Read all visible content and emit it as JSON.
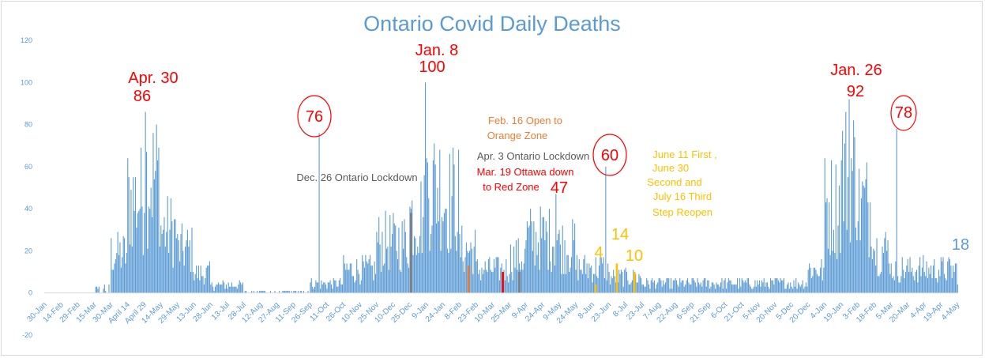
{
  "chart_data": {
    "type": "bar",
    "title": "Ontario Covid Daily Deaths",
    "xlabel": "",
    "ylabel": "",
    "ylim": [
      -20,
      120
    ],
    "yticks": [
      -20,
      0,
      20,
      40,
      60,
      80,
      100,
      120
    ],
    "x_start_date": "2020-01-30",
    "x_end_date": "2022-05-04",
    "grid": false,
    "legend": "none",
    "bar_color": "#5b9bd5",
    "x_tick_labels": [
      {
        "date": "2020-01-30",
        "label": "30-Jan"
      },
      {
        "date": "2020-02-14",
        "label": "14-Feb"
      },
      {
        "date": "2020-02-29",
        "label": "29-Feb"
      },
      {
        "date": "2020-03-15",
        "label": "15-Mar"
      },
      {
        "date": "2020-03-30",
        "label": "30-Mar"
      },
      {
        "date": "2020-04-14",
        "label": "April 14"
      },
      {
        "date": "2020-04-29",
        "label": "April 29"
      },
      {
        "date": "2020-05-14",
        "label": "14-May"
      },
      {
        "date": "2020-05-29",
        "label": "29-May"
      },
      {
        "date": "2020-06-13",
        "label": "13-Jun"
      },
      {
        "date": "2020-06-28",
        "label": "28-Jun"
      },
      {
        "date": "2020-07-13",
        "label": "13-Jul"
      },
      {
        "date": "2020-07-28",
        "label": "28-Jul"
      },
      {
        "date": "2020-08-12",
        "label": "12-Aug"
      },
      {
        "date": "2020-08-27",
        "label": "27-Aug"
      },
      {
        "date": "2020-09-11",
        "label": "11-Sep"
      },
      {
        "date": "2020-09-26",
        "label": "26-Sep"
      },
      {
        "date": "2020-10-11",
        "label": "11-Oct"
      },
      {
        "date": "2020-10-26",
        "label": "26-Oct"
      },
      {
        "date": "2020-11-10",
        "label": "10-Nov"
      },
      {
        "date": "2020-11-25",
        "label": "25-Nov"
      },
      {
        "date": "2020-12-10",
        "label": "10-Dec"
      },
      {
        "date": "2020-12-25",
        "label": "25-Dec"
      },
      {
        "date": "2021-01-09",
        "label": "9-Jan"
      },
      {
        "date": "2021-01-24",
        "label": "24-Jan"
      },
      {
        "date": "2021-02-08",
        "label": "8-Feb"
      },
      {
        "date": "2021-02-23",
        "label": "23-Feb"
      },
      {
        "date": "2021-03-10",
        "label": "10-Mar"
      },
      {
        "date": "2021-03-25",
        "label": "25-Mar"
      },
      {
        "date": "2021-04-09",
        "label": "9-Apr"
      },
      {
        "date": "2021-04-24",
        "label": "24-Apr"
      },
      {
        "date": "2021-05-09",
        "label": "9-May"
      },
      {
        "date": "2021-05-24",
        "label": "24-May"
      },
      {
        "date": "2021-06-08",
        "label": "8-Jun"
      },
      {
        "date": "2021-06-23",
        "label": "23-Jun"
      },
      {
        "date": "2021-07-08",
        "label": "8-Jul"
      },
      {
        "date": "2021-07-23",
        "label": "23-Jul"
      },
      {
        "date": "2021-08-07",
        "label": "7-Aug"
      },
      {
        "date": "2021-08-22",
        "label": "22-Aug"
      },
      {
        "date": "2021-09-06",
        "label": "6-Sep"
      },
      {
        "date": "2021-09-21",
        "label": "21-Sep"
      },
      {
        "date": "2021-10-06",
        "label": "6-Oct"
      },
      {
        "date": "2021-10-21",
        "label": "21-Oct"
      },
      {
        "date": "2021-11-05",
        "label": "5-Nov"
      },
      {
        "date": "2021-11-20",
        "label": "20-Nov"
      },
      {
        "date": "2021-12-05",
        "label": "5-Dec"
      },
      {
        "date": "2021-12-20",
        "label": "20-Dec"
      },
      {
        "date": "2022-01-04",
        "label": "4-Jan"
      },
      {
        "date": "2022-01-19",
        "label": "19-Jan"
      },
      {
        "date": "2022-02-03",
        "label": "3-Feb"
      },
      {
        "date": "2022-02-18",
        "label": "18-Feb"
      },
      {
        "date": "2022-03-05",
        "label": "5-Mar"
      },
      {
        "date": "2022-03-20",
        "label": "20-Mar"
      },
      {
        "date": "2022-04-04",
        "label": "4-Apr"
      },
      {
        "date": "2022-04-19",
        "label": "19-Apr"
      },
      {
        "date": "2022-05-04",
        "label": "4-May"
      }
    ],
    "series": [
      {
        "values_by_period": [
          {
            "from": "2020-01-30",
            "to": "2020-03-14",
            "approx": 0
          },
          {
            "from": "2020-03-15",
            "to": "2020-03-29",
            "approx": 3
          },
          {
            "from": "2020-03-30",
            "to": "2020-04-13",
            "approx": 20
          },
          {
            "from": "2020-04-14",
            "to": "2020-04-28",
            "approx": 48
          },
          {
            "from": "2020-04-29",
            "to": "2020-05-13",
            "approx": 60
          },
          {
            "from": "2020-05-14",
            "to": "2020-05-28",
            "approx": 32
          },
          {
            "from": "2020-05-29",
            "to": "2020-06-12",
            "approx": 22
          },
          {
            "from": "2020-06-13",
            "to": "2020-06-27",
            "approx": 10
          },
          {
            "from": "2020-06-28",
            "to": "2020-07-27",
            "approx": 4
          },
          {
            "from": "2020-07-28",
            "to": "2020-09-25",
            "approx": 1
          },
          {
            "from": "2020-09-26",
            "to": "2020-10-25",
            "approx": 5
          },
          {
            "from": "2020-10-26",
            "to": "2020-11-24",
            "approx": 12
          },
          {
            "from": "2020-11-25",
            "to": "2020-12-24",
            "approx": 26
          },
          {
            "from": "2020-12-25",
            "to": "2021-01-08",
            "approx": 40
          },
          {
            "from": "2021-01-09",
            "to": "2021-01-23",
            "approx": 55
          },
          {
            "from": "2021-01-24",
            "to": "2021-02-07",
            "approx": 48
          },
          {
            "from": "2021-02-08",
            "to": "2021-02-22",
            "approx": 22
          },
          {
            "from": "2021-02-23",
            "to": "2021-03-24",
            "approx": 12
          },
          {
            "from": "2021-03-25",
            "to": "2021-04-08",
            "approx": 18
          },
          {
            "from": "2021-04-09",
            "to": "2021-05-08",
            "approx": 28
          },
          {
            "from": "2021-05-09",
            "to": "2021-05-23",
            "approx": 24
          },
          {
            "from": "2021-05-24",
            "to": "2021-06-22",
            "approx": 13
          },
          {
            "from": "2021-06-23",
            "to": "2021-07-22",
            "approx": 8
          },
          {
            "from": "2021-07-23",
            "to": "2021-12-19",
            "approx": 5
          },
          {
            "from": "2021-12-20",
            "to": "2022-01-03",
            "approx": 12
          },
          {
            "from": "2022-01-04",
            "to": "2022-01-18",
            "approx": 45
          },
          {
            "from": "2022-01-19",
            "to": "2022-02-02",
            "approx": 62
          },
          {
            "from": "2022-02-03",
            "to": "2022-02-17",
            "approx": 45
          },
          {
            "from": "2022-02-18",
            "to": "2022-03-04",
            "approx": 22
          },
          {
            "from": "2022-03-05",
            "to": "2022-05-04",
            "approx": 12
          }
        ],
        "peaks": [
          {
            "date": "2020-04-30",
            "value": 86
          },
          {
            "date": "2020-10-04",
            "value": 76
          },
          {
            "date": "2021-01-08",
            "value": 100
          },
          {
            "date": "2021-05-06",
            "value": 47
          },
          {
            "date": "2021-06-20",
            "value": 60
          },
          {
            "date": "2022-01-26",
            "value": 92
          },
          {
            "date": "2022-03-10",
            "value": 78
          }
        ]
      }
    ],
    "highlighted_bars": [
      {
        "date": "2020-12-26",
        "value": 38,
        "color": "#7f7f7f"
      },
      {
        "date": "2021-02-16",
        "value": 13,
        "color": "#ed7d31"
      },
      {
        "date": "2021-03-19",
        "value": 10,
        "color": "#ff0000"
      },
      {
        "date": "2021-04-03",
        "value": 10,
        "color": "#7f7f7f"
      },
      {
        "date": "2021-06-11",
        "value": 4,
        "color": "#ffc000"
      },
      {
        "date": "2021-06-30",
        "value": 14,
        "color": "#ffc000"
      },
      {
        "date": "2021-07-16",
        "value": 10,
        "color": "#ffc000"
      }
    ],
    "annotations": [
      {
        "id": "apr30-date",
        "text": "Apr. 30",
        "color": "#ff0000",
        "size": "large"
      },
      {
        "id": "apr30-val",
        "text": "86",
        "color": "#ff0000",
        "size": "large"
      },
      {
        "id": "oct-val",
        "text": "76",
        "color": "#ff0000",
        "size": "large",
        "circled": true
      },
      {
        "id": "dec26",
        "text": "Dec. 26 Ontario Lockdown",
        "color": "#595959",
        "size": "small"
      },
      {
        "id": "jan8-date",
        "text": "Jan. 8",
        "color": "#ff0000",
        "size": "large"
      },
      {
        "id": "jan8-val",
        "text": "100",
        "color": "#ff0000",
        "size": "large"
      },
      {
        "id": "feb16-1",
        "text": "Feb. 16 Open to",
        "color": "#ed7d31",
        "size": "small"
      },
      {
        "id": "feb16-2",
        "text": "Orange Zone",
        "color": "#ed7d31",
        "size": "small"
      },
      {
        "id": "apr3",
        "text": "Apr. 3 Ontario Lockdown",
        "color": "#595959",
        "size": "small"
      },
      {
        "id": "mar19-1",
        "text": "Mar. 19 Ottawa down",
        "color": "#ff0000",
        "size": "small"
      },
      {
        "id": "mar19-2",
        "text": "to Red Zone",
        "color": "#ff0000",
        "size": "small"
      },
      {
        "id": "may-val",
        "text": "47",
        "color": "#ff0000",
        "size": "large"
      },
      {
        "id": "jun-val",
        "text": "60",
        "color": "#ff0000",
        "size": "large",
        "circled": true
      },
      {
        "id": "reopen-1",
        "text": "June 11 First ,",
        "color": "#ffc000",
        "size": "small"
      },
      {
        "id": "reopen-2",
        "text": "June 30",
        "color": "#ffc000",
        "size": "small"
      },
      {
        "id": "reopen-3",
        "text": "Second and",
        "color": "#ffc000",
        "size": "small"
      },
      {
        "id": "reopen-4",
        "text": "July 16 Third",
        "color": "#ffc000",
        "size": "small"
      },
      {
        "id": "reopen-5",
        "text": "Step Reopen",
        "color": "#ffc000",
        "size": "small"
      },
      {
        "id": "step1",
        "text": "4",
        "color": "#ffc000",
        "size": "large"
      },
      {
        "id": "step2",
        "text": "14",
        "color": "#ffc000",
        "size": "large"
      },
      {
        "id": "step3",
        "text": "10",
        "color": "#ffc000",
        "size": "large"
      },
      {
        "id": "jan26-date",
        "text": "Jan. 26",
        "color": "#ff0000",
        "size": "large"
      },
      {
        "id": "jan26-val",
        "text": "92",
        "color": "#ff0000",
        "size": "large"
      },
      {
        "id": "mar-val",
        "text": "78",
        "color": "#ff0000",
        "size": "large",
        "circled": true
      },
      {
        "id": "last-val",
        "text": "18",
        "color": "#5b9bd5",
        "size": "large"
      }
    ]
  }
}
